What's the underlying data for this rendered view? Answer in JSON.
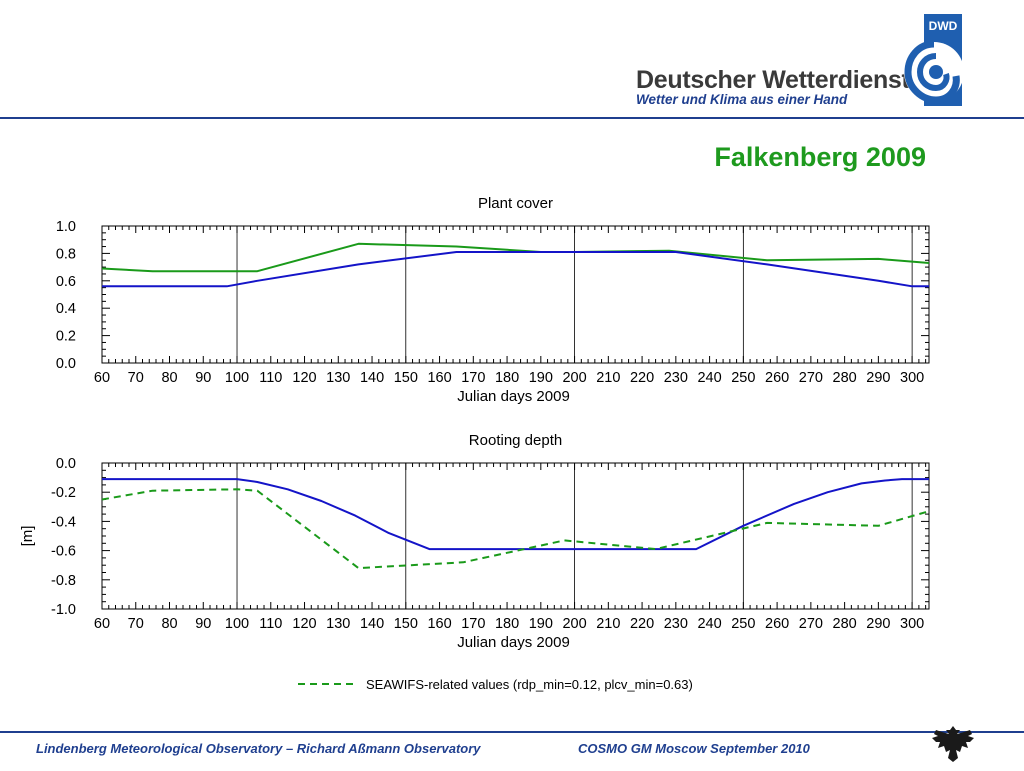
{
  "header": {
    "abbrev": "DWD",
    "brand_name": "Deutscher Wetterdienst",
    "tagline": "Wetter und Klima aus einer Hand",
    "icon": "dwd-logo-icon"
  },
  "slide": {
    "title": "Falkenberg 2009"
  },
  "chart_data": [
    {
      "type": "line",
      "title": "Plant cover",
      "xlabel": "Julian days 2009",
      "ylabel": "",
      "xlim": [
        60,
        305
      ],
      "ylim": [
        0.0,
        1.0
      ],
      "xticks": [
        60,
        70,
        80,
        90,
        100,
        110,
        120,
        130,
        140,
        150,
        160,
        170,
        180,
        190,
        200,
        210,
        220,
        230,
        240,
        250,
        260,
        270,
        280,
        290,
        300
      ],
      "yticks": [
        "0.0",
        "0.2",
        "0.4",
        "0.6",
        "0.8",
        "1.0"
      ],
      "vgrid": [
        100,
        150,
        200,
        250,
        300
      ],
      "series": [
        {
          "color": "#1a9a1a",
          "dash": false,
          "x": [
            60,
            75,
            97,
            106,
            136,
            165,
            190,
            200,
            228,
            257,
            290,
            305
          ],
          "y": [
            0.69,
            0.67,
            0.67,
            0.67,
            0.87,
            0.85,
            0.81,
            0.81,
            0.82,
            0.75,
            0.76,
            0.73
          ]
        },
        {
          "color": "#1414c8",
          "dash": false,
          "x": [
            60,
            97,
            106,
            136,
            165,
            200,
            230,
            257,
            290,
            300,
            305
          ],
          "y": [
            0.56,
            0.56,
            0.6,
            0.72,
            0.81,
            0.81,
            0.81,
            0.72,
            0.6,
            0.56,
            0.56
          ]
        }
      ]
    },
    {
      "type": "line",
      "title": "Rooting depth",
      "xlabel": "Julian days 2009",
      "ylabel": "[m]",
      "xlim": [
        60,
        305
      ],
      "ylim": [
        -1.0,
        0.0
      ],
      "xticks": [
        60,
        70,
        80,
        90,
        100,
        110,
        120,
        130,
        140,
        150,
        160,
        170,
        180,
        190,
        200,
        210,
        220,
        230,
        240,
        250,
        260,
        270,
        280,
        290,
        300
      ],
      "yticks": [
        "-1.0",
        "-0.8",
        "-0.6",
        "-0.4",
        "-0.2",
        "0.0"
      ],
      "vgrid": [
        100,
        150,
        200,
        250,
        300
      ],
      "series": [
        {
          "color": "#1414c8",
          "dash": false,
          "x": [
            60,
            80,
            100,
            106,
            115,
            125,
            135,
            145,
            157,
            200,
            236,
            250,
            265,
            275,
            285,
            292,
            297,
            305
          ],
          "y": [
            -0.11,
            -0.11,
            -0.11,
            -0.13,
            -0.18,
            -0.26,
            -0.36,
            -0.48,
            -0.59,
            -0.59,
            -0.59,
            -0.43,
            -0.28,
            -0.2,
            -0.14,
            -0.12,
            -0.11,
            -0.11
          ]
        },
        {
          "name": "SEAWIFS-related values (rdp_min=0.12, plcv_min=0.63)",
          "color": "#1a9a1a",
          "dash": true,
          "x": [
            60,
            75,
            100,
            106,
            136,
            167,
            197,
            224,
            257,
            290,
            305
          ],
          "y": [
            -0.25,
            -0.19,
            -0.18,
            -0.19,
            -0.72,
            -0.68,
            -0.53,
            -0.59,
            -0.41,
            -0.43,
            -0.33
          ]
        }
      ]
    }
  ],
  "legend": {
    "label": "SEAWIFS-related values (rdp_min=0.12, plcv_min=0.63)"
  },
  "footer": {
    "left": "Lindenberg Meteorological Observatory – Richard Aßmann Observatory",
    "right": "COSMO GM Moscow September 2010",
    "icon": "federal-eagle-icon"
  }
}
